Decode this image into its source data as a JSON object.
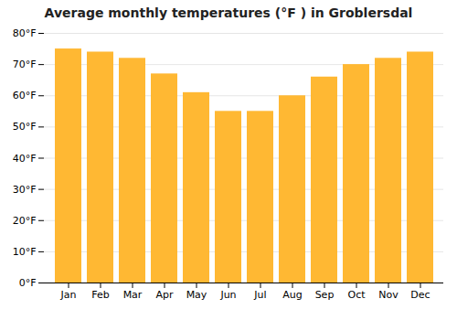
{
  "chart_data": {
    "type": "bar",
    "title": "Average monthly temperatures (°F ) in Groblersdal",
    "categories": [
      "Jan",
      "Feb",
      "Mar",
      "Apr",
      "May",
      "Jun",
      "Jul",
      "Aug",
      "Sep",
      "Oct",
      "Nov",
      "Dec"
    ],
    "values": [
      75,
      74,
      72,
      67,
      61,
      55,
      55,
      60,
      66,
      70,
      72,
      74
    ],
    "color": "#FFB833",
    "ylim": [
      0,
      80
    ],
    "yticks": [
      {
        "value": 0,
        "label": "0°F"
      },
      {
        "value": 10,
        "label": "10°F"
      },
      {
        "value": 20,
        "label": "20°F"
      },
      {
        "value": 30,
        "label": "30°F"
      },
      {
        "value": 40,
        "label": "40°F"
      },
      {
        "value": 50,
        "label": "50°F"
      },
      {
        "value": 60,
        "label": "60°F"
      },
      {
        "value": 70,
        "label": "70°F"
      },
      {
        "value": 80,
        "label": "80°F"
      }
    ],
    "grid": true
  }
}
